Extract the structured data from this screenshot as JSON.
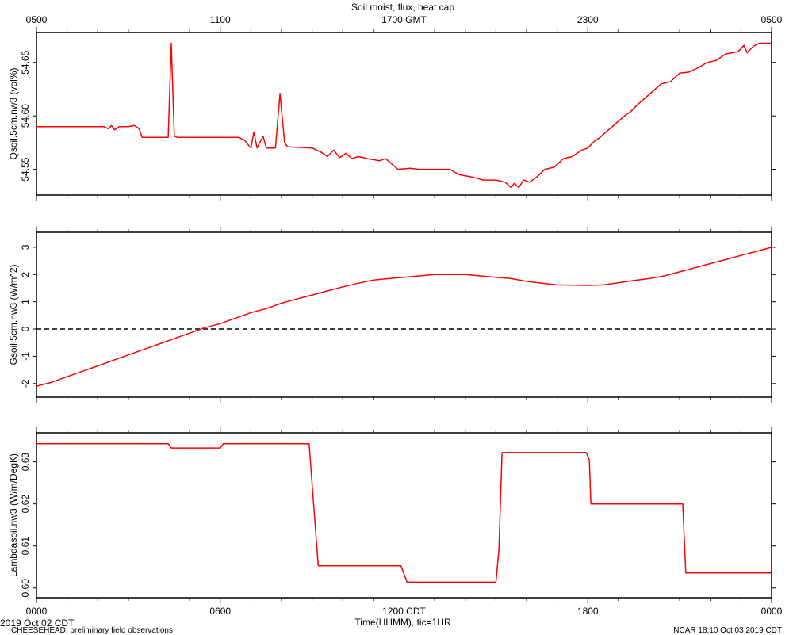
{
  "title": "Soil moist, flux, heat cap",
  "top_axis": {
    "ticks": [
      "0500",
      "1100",
      "1700 GMT",
      "2300",
      "0500"
    ]
  },
  "bottom_axis": {
    "ticks": [
      "0000",
      "0600",
      "1200 CDT",
      "1800",
      "0000"
    ],
    "label": "Time(HHMM), tic=1HR"
  },
  "footer": {
    "left_date": "2019 Oct 02 CDT",
    "left_note": "CHEESEHEAD: preliminary field observations",
    "right": "NCAR 18:10 Oct 03 2019 CDT"
  },
  "colors": {
    "series": "#ff0000",
    "axis": "#000000",
    "zero_line": "#000000"
  },
  "chart_data": [
    {
      "type": "line",
      "ylabel": "Qsoil.5cm.nw3 (vol%)",
      "xlim": [
        0,
        24
      ],
      "ylim": [
        54.526,
        54.678
      ],
      "yticks": [
        54.55,
        54.6,
        54.65
      ],
      "ytick_labels": [
        "54.55",
        "54.60",
        "54.65"
      ],
      "series": [
        {
          "points": [
            [
              0.0,
              54.59
            ],
            [
              2.2,
              54.59
            ],
            [
              2.35,
              54.588
            ],
            [
              2.45,
              54.591
            ],
            [
              2.55,
              54.587
            ],
            [
              2.7,
              54.59
            ],
            [
              3.0,
              54.59
            ],
            [
              3.2,
              54.591
            ],
            [
              3.35,
              54.588
            ],
            [
              3.45,
              54.58
            ],
            [
              4.3,
              54.58
            ],
            [
              4.4,
              54.668
            ],
            [
              4.5,
              54.581
            ],
            [
              4.6,
              54.58
            ],
            [
              6.0,
              54.58
            ],
            [
              6.6,
              54.58
            ],
            [
              6.8,
              54.577
            ],
            [
              7.0,
              54.57
            ],
            [
              7.1,
              54.585
            ],
            [
              7.2,
              54.57
            ],
            [
              7.4,
              54.581
            ],
            [
              7.5,
              54.57
            ],
            [
              7.8,
              54.57
            ],
            [
              7.95,
              54.621
            ],
            [
              8.1,
              54.575
            ],
            [
              8.2,
              54.571
            ],
            [
              9.0,
              54.57
            ],
            [
              9.3,
              54.566
            ],
            [
              9.5,
              54.562
            ],
            [
              9.7,
              54.568
            ],
            [
              9.9,
              54.561
            ],
            [
              10.1,
              54.565
            ],
            [
              10.3,
              54.56
            ],
            [
              10.5,
              54.562
            ],
            [
              10.8,
              54.56
            ],
            [
              11.2,
              54.558
            ],
            [
              11.4,
              54.56
            ],
            [
              11.8,
              54.55
            ],
            [
              12.2,
              54.551
            ],
            [
              12.5,
              54.55
            ],
            [
              13.5,
              54.55
            ],
            [
              13.8,
              54.545
            ],
            [
              14.2,
              54.543
            ],
            [
              14.6,
              54.54
            ],
            [
              15.0,
              54.54
            ],
            [
              15.3,
              54.538
            ],
            [
              15.5,
              54.533
            ],
            [
              15.6,
              54.537
            ],
            [
              15.75,
              54.533
            ],
            [
              15.9,
              54.54
            ],
            [
              16.1,
              54.538
            ],
            [
              16.3,
              54.542
            ],
            [
              16.6,
              54.55
            ],
            [
              16.9,
              54.552
            ],
            [
              17.2,
              54.56
            ],
            [
              17.5,
              54.562
            ],
            [
              17.8,
              54.568
            ],
            [
              18.0,
              54.57
            ],
            [
              18.2,
              54.576
            ],
            [
              18.4,
              54.58
            ],
            [
              18.6,
              54.585
            ],
            [
              18.8,
              54.59
            ],
            [
              19.0,
              54.595
            ],
            [
              19.2,
              54.6
            ],
            [
              19.4,
              54.604
            ],
            [
              19.6,
              54.61
            ],
            [
              19.8,
              54.615
            ],
            [
              20.0,
              54.62
            ],
            [
              20.2,
              54.625
            ],
            [
              20.4,
              54.63
            ],
            [
              20.7,
              54.632
            ],
            [
              21.0,
              54.64
            ],
            [
              21.3,
              54.641
            ],
            [
              21.6,
              54.645
            ],
            [
              21.9,
              54.65
            ],
            [
              22.2,
              54.652
            ],
            [
              22.5,
              54.658
            ],
            [
              22.9,
              54.66
            ],
            [
              23.1,
              54.666
            ],
            [
              23.2,
              54.659
            ],
            [
              23.4,
              54.665
            ],
            [
              23.6,
              54.668
            ],
            [
              24.0,
              54.668
            ]
          ]
        }
      ]
    },
    {
      "type": "line",
      "ylabel": "Gsoil.5cm.nw3 (W/m^2)",
      "xlim": [
        0,
        24
      ],
      "ylim": [
        -2.5,
        3.55
      ],
      "yticks": [
        -2,
        -1,
        0,
        1,
        2,
        3
      ],
      "ytick_labels": [
        "-2",
        "-1",
        "0",
        "1",
        "2",
        "3"
      ],
      "zero_line": true,
      "series": [
        {
          "points": [
            [
              0.0,
              -2.1
            ],
            [
              0.5,
              -1.95
            ],
            [
              1.0,
              -1.75
            ],
            [
              1.5,
              -1.55
            ],
            [
              2.0,
              -1.35
            ],
            [
              2.5,
              -1.15
            ],
            [
              3.0,
              -0.95
            ],
            [
              3.5,
              -0.75
            ],
            [
              4.0,
              -0.55
            ],
            [
              4.5,
              -0.35
            ],
            [
              5.0,
              -0.15
            ],
            [
              5.5,
              0.05
            ],
            [
              6.0,
              0.2
            ],
            [
              6.5,
              0.4
            ],
            [
              7.0,
              0.6
            ],
            [
              7.5,
              0.75
            ],
            [
              8.0,
              0.95
            ],
            [
              8.5,
              1.1
            ],
            [
              9.0,
              1.25
            ],
            [
              9.5,
              1.4
            ],
            [
              10.0,
              1.55
            ],
            [
              10.5,
              1.68
            ],
            [
              11.0,
              1.8
            ],
            [
              11.5,
              1.85
            ],
            [
              12.0,
              1.9
            ],
            [
              12.5,
              1.95
            ],
            [
              13.0,
              2.0
            ],
            [
              14.0,
              2.0
            ],
            [
              14.5,
              1.95
            ],
            [
              15.0,
              1.9
            ],
            [
              15.5,
              1.85
            ],
            [
              16.0,
              1.75
            ],
            [
              16.5,
              1.68
            ],
            [
              17.0,
              1.62
            ],
            [
              18.0,
              1.6
            ],
            [
              18.5,
              1.62
            ],
            [
              19.0,
              1.7
            ],
            [
              19.5,
              1.78
            ],
            [
              20.0,
              1.85
            ],
            [
              20.5,
              1.95
            ],
            [
              21.0,
              2.1
            ],
            [
              21.5,
              2.25
            ],
            [
              22.0,
              2.4
            ],
            [
              22.5,
              2.55
            ],
            [
              23.0,
              2.7
            ],
            [
              23.5,
              2.85
            ],
            [
              24.0,
              3.0
            ]
          ]
        }
      ]
    },
    {
      "type": "line",
      "ylabel": "Lambdasoil.nw3 (W/m/DegK)",
      "xlim": [
        0,
        24
      ],
      "ylim": [
        0.5977,
        0.6369
      ],
      "yticks": [
        0.6,
        0.61,
        0.62,
        0.63
      ],
      "ytick_labels": [
        "0.60",
        "0.61",
        "0.62",
        "0.63"
      ],
      "series": [
        {
          "points": [
            [
              0.0,
              0.6343
            ],
            [
              4.3,
              0.6343
            ],
            [
              4.4,
              0.6333
            ],
            [
              6.0,
              0.6333
            ],
            [
              6.1,
              0.6343
            ],
            [
              8.9,
              0.6343
            ],
            [
              9.2,
              0.6053
            ],
            [
              11.9,
              0.6053
            ],
            [
              12.1,
              0.6014
            ],
            [
              15.0,
              0.6014
            ],
            [
              15.1,
              0.6092
            ],
            [
              15.2,
              0.6322
            ],
            [
              17.95,
              0.6322
            ],
            [
              18.05,
              0.6304
            ],
            [
              18.1,
              0.62
            ],
            [
              21.1,
              0.62
            ],
            [
              21.2,
              0.6036
            ],
            [
              24.0,
              0.6036
            ]
          ]
        }
      ]
    }
  ]
}
